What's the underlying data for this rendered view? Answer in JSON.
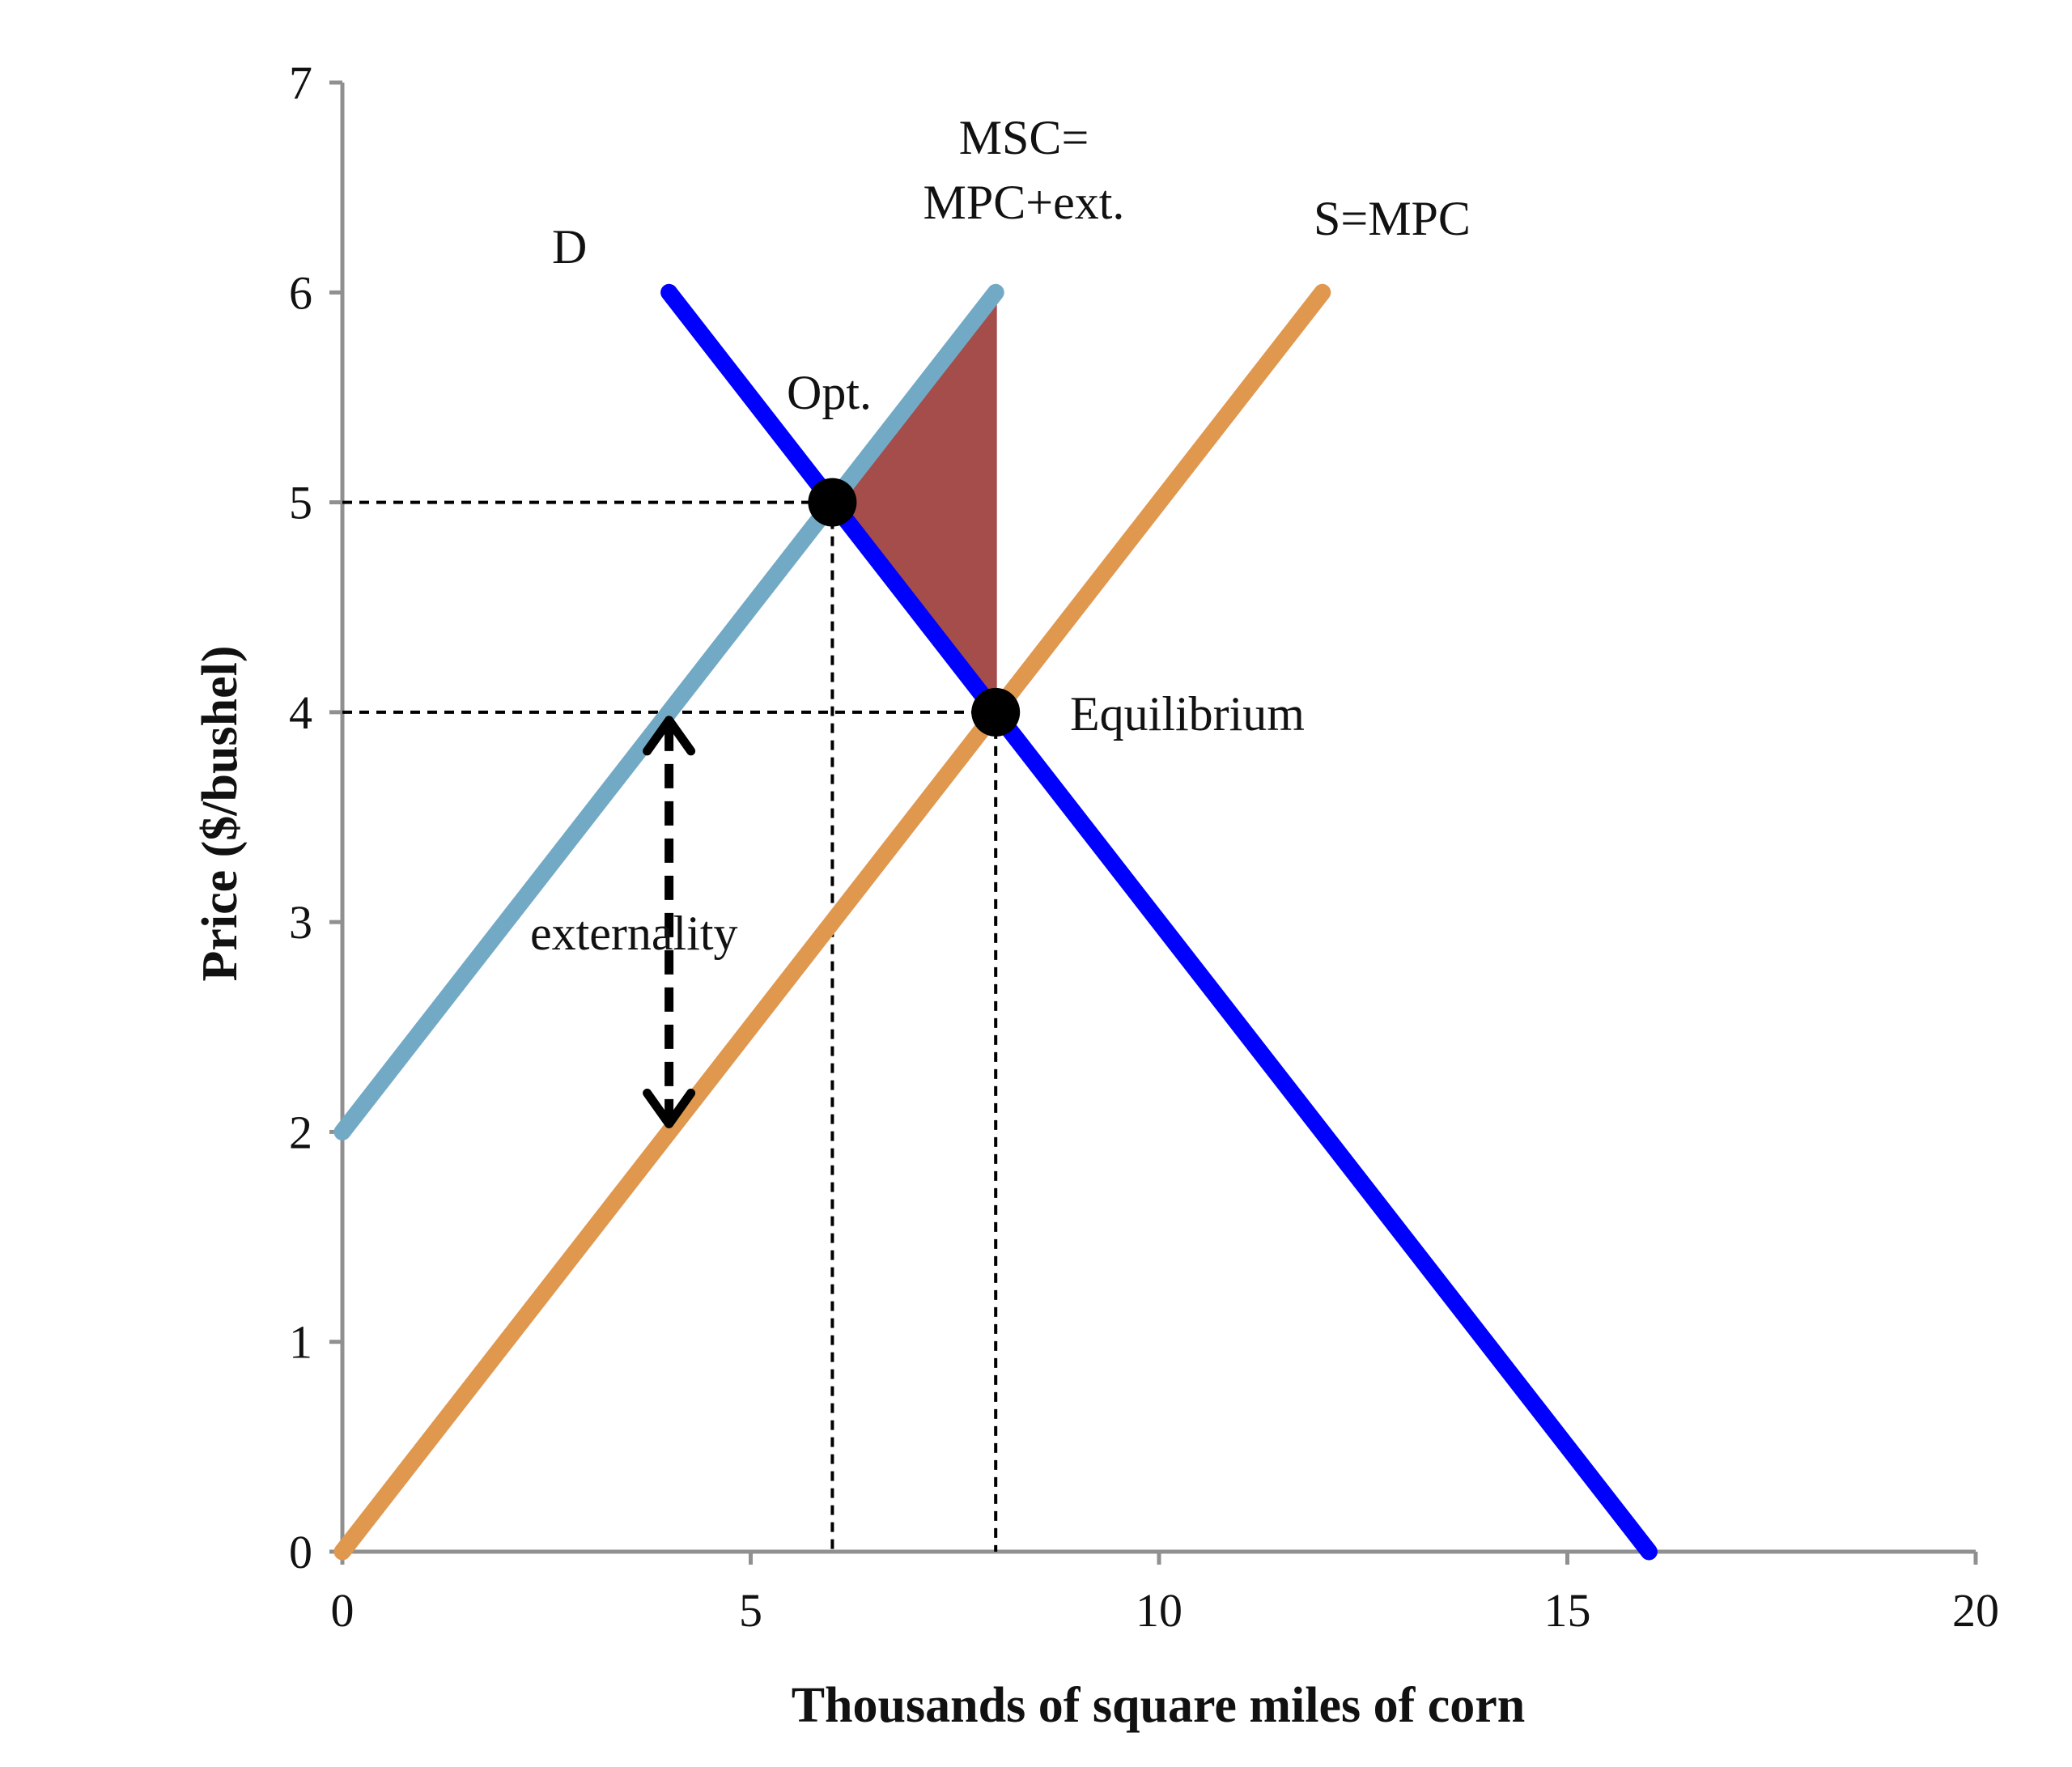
{
  "chart_data": {
    "type": "line",
    "title": "",
    "xlabel": "Thousands of square miles of corn",
    "ylabel": "Price ($/bushel)",
    "xlim": [
      0,
      20
    ],
    "ylim": [
      0,
      7
    ],
    "x_ticks": [
      "0",
      "5",
      "10",
      "15",
      "20"
    ],
    "y_ticks": [
      "0",
      "1",
      "2",
      "3",
      "4",
      "5",
      "6",
      "7"
    ],
    "grid": false,
    "legend": "none",
    "series": [
      {
        "name": "D",
        "color": "#0000ff",
        "points": [
          [
            4,
            6
          ],
          [
            16,
            0
          ]
        ]
      },
      {
        "name": "S=MPC",
        "color": "#e0984f",
        "points": [
          [
            0,
            0
          ],
          [
            12,
            6
          ]
        ]
      },
      {
        "name": "MSC= MPC+ext.",
        "color": "#72aac6",
        "points": [
          [
            0,
            2
          ],
          [
            8,
            6
          ]
        ]
      }
    ],
    "shaded_region": {
      "color": "#a44d4b",
      "points": [
        [
          6,
          5
        ],
        [
          8,
          6
        ],
        [
          8,
          4
        ]
      ]
    },
    "points_of_interest": [
      {
        "label": "Opt.",
        "x": 6,
        "y": 5
      },
      {
        "label": "Equilibrium",
        "x": 8,
        "y": 4
      }
    ],
    "reference_lines": [
      {
        "from": [
          0,
          5
        ],
        "to": [
          6,
          5
        ]
      },
      {
        "from": [
          6,
          5
        ],
        "to": [
          6,
          0
        ]
      },
      {
        "from": [
          0,
          4
        ],
        "to": [
          8,
          4
        ]
      },
      {
        "from": [
          8,
          4
        ],
        "to": [
          8,
          0
        ]
      }
    ],
    "externality_arrow": {
      "label": "externality",
      "x": 4,
      "from_y": 2,
      "to_y": 4
    },
    "annotations": {
      "demand": "D",
      "msc_line1": "MSC=",
      "msc_line2": "MPC+ext.",
      "supply": "S=MPC",
      "optimum": "Opt.",
      "equilibrium": "Equilibrium",
      "externality": "externality"
    }
  }
}
